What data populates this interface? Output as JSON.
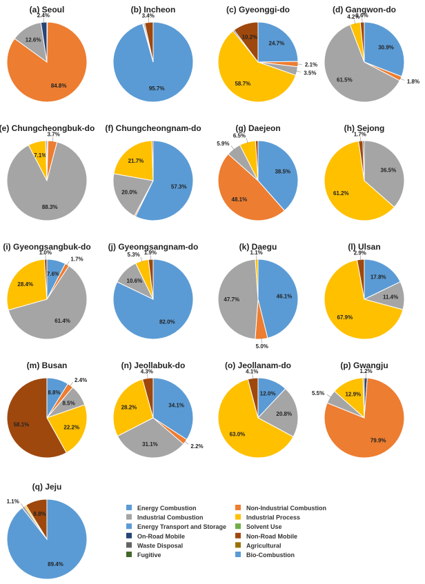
{
  "figure": {
    "legend": [
      {
        "label": "Energy Combustion",
        "color": "#5B9BD5"
      },
      {
        "label": "Non-Industrial Combustion",
        "color": "#ED7D31"
      },
      {
        "label": "Industrial Combustion",
        "color": "#A5A5A5"
      },
      {
        "label": "Industrial Process",
        "color": "#FFC000"
      },
      {
        "label": "Energy Transport and Storage",
        "color": "#5B9BD5"
      },
      {
        "label": "Solvent Use",
        "color": "#70AD47"
      },
      {
        "label": "On-Road Mobile",
        "color": "#264478"
      },
      {
        "label": "Non-Road Mobile",
        "color": "#9E480E"
      },
      {
        "label": "Waste Disposal",
        "color": "#636363"
      },
      {
        "label": "Agricultural",
        "color": "#997300"
      },
      {
        "label": "Fugitive",
        "color": "#43682B"
      },
      {
        "label": "Bio-Combustion",
        "color": "#5B9BD5"
      }
    ]
  },
  "chart_data": [
    {
      "type": "pie",
      "title": "(a) Seoul",
      "slices": [
        {
          "category": "Energy Combustion",
          "value": 0.2,
          "label": ""
        },
        {
          "category": "Non-Industrial Combustion",
          "value": 84.8,
          "label": "84.8%"
        },
        {
          "category": "Industrial Combustion",
          "value": 12.6,
          "label": "12.6%"
        },
        {
          "category": "On-Road Mobile",
          "value": 2.4,
          "label": "2.4%"
        }
      ]
    },
    {
      "type": "pie",
      "title": "(b) Incheon",
      "slices": [
        {
          "category": "Energy Combustion",
          "value": 95.7,
          "label": "95.7%"
        },
        {
          "category": "Non-Industrial Combustion",
          "value": 0.3,
          "label": ""
        },
        {
          "category": "Industrial Combustion",
          "value": 0.6,
          "label": ""
        },
        {
          "category": "Non-Road Mobile",
          "value": 3.4,
          "label": "3.4%"
        }
      ]
    },
    {
      "type": "pie",
      "title": "(c) Gyeonggi-do",
      "slices": [
        {
          "category": "Energy Combustion",
          "value": 24.7,
          "label": "24.7%"
        },
        {
          "category": "Non-Industrial Combustion",
          "value": 2.1,
          "label": "2.1%"
        },
        {
          "category": "Industrial Combustion",
          "value": 3.5,
          "label": "3.5%"
        },
        {
          "category": "Industrial Process",
          "value": 58.7,
          "label": "58.7%"
        },
        {
          "category": "On-Road Mobile",
          "value": 0.5,
          "label": ""
        },
        {
          "category": "Non-Road Mobile",
          "value": 10.2,
          "label": "10.2%"
        }
      ]
    },
    {
      "type": "pie",
      "title": "(d) Gangwon-do",
      "slices": [
        {
          "category": "Energy Combustion",
          "value": 30.9,
          "label": "30.9%"
        },
        {
          "category": "Non-Industrial Combustion",
          "value": 1.8,
          "label": "1.8%"
        },
        {
          "category": "Industrial Combustion",
          "value": 61.5,
          "label": "61.5%"
        },
        {
          "category": "Industrial Process",
          "value": 4.2,
          "label": "4.2%"
        },
        {
          "category": "Non-Road Mobile",
          "value": 1.6,
          "label": "1.6%"
        }
      ]
    },
    {
      "type": "pie",
      "title": "(e) Chungcheongbuk-do",
      "slices": [
        {
          "category": "Energy Combustion",
          "value": 0.4,
          "label": ""
        },
        {
          "category": "Non-Industrial Combustion",
          "value": 3.7,
          "label": "3.7%"
        },
        {
          "category": "Industrial Combustion",
          "value": 88.3,
          "label": "88.3%"
        },
        {
          "category": "Industrial Process",
          "value": 7.1,
          "label": "7.1%"
        },
        {
          "category": "Waste Disposal",
          "value": 0.5,
          "label": ""
        }
      ]
    },
    {
      "type": "pie",
      "title": "(f) Chungcheongnam-do",
      "slices": [
        {
          "category": "Energy Combustion",
          "value": 57.3,
          "label": "57.3%"
        },
        {
          "category": "Non-Industrial Combustion",
          "value": 0.5,
          "label": ""
        },
        {
          "category": "Industrial Combustion",
          "value": 20.0,
          "label": "20.0%"
        },
        {
          "category": "Industrial Process",
          "value": 21.7,
          "label": "21.7%"
        },
        {
          "category": "Non-Road Mobile",
          "value": 0.5,
          "label": ""
        }
      ]
    },
    {
      "type": "pie",
      "title": "(g) Daejeon",
      "slices": [
        {
          "category": "Energy Combustion",
          "value": 38.5,
          "label": "38.5%"
        },
        {
          "category": "Non-Industrial Combustion",
          "value": 48.1,
          "label": "48.1%"
        },
        {
          "category": "Industrial Combustion",
          "value": 5.9,
          "label": "5.9%"
        },
        {
          "category": "Industrial Process",
          "value": 6.5,
          "label": "6.5%"
        },
        {
          "category": "Non-Road Mobile",
          "value": 1.0,
          "label": ""
        }
      ]
    },
    {
      "type": "pie",
      "title": "(h) Sejong",
      "slices": [
        {
          "category": "Industrial Combustion",
          "value": 36.5,
          "label": "36.5%"
        },
        {
          "category": "Industrial Process",
          "value": 61.2,
          "label": "61.2%"
        },
        {
          "category": "Non-Road Mobile",
          "value": 1.7,
          "label": "1.7%"
        },
        {
          "category": "Waste Disposal",
          "value": 0.6,
          "label": ""
        }
      ]
    },
    {
      "type": "pie",
      "title": "(i) Gyeongsangbuk-do",
      "slices": [
        {
          "category": "Energy Combustion",
          "value": 7.6,
          "label": "7.6%"
        },
        {
          "category": "Non-Industrial Combustion",
          "value": 1.7,
          "label": "1.7%"
        },
        {
          "category": "Industrial Combustion",
          "value": 61.4,
          "label": "61.4%"
        },
        {
          "category": "Industrial Process",
          "value": 28.4,
          "label": "28.4%"
        },
        {
          "category": "Non-Road Mobile",
          "value": 1.0,
          "label": "1.0%"
        }
      ]
    },
    {
      "type": "pie",
      "title": "(j) Gyeongsangnam-do",
      "slices": [
        {
          "category": "Energy Combustion",
          "value": 82.0,
          "label": "82.0%"
        },
        {
          "category": "Industrial Combustion",
          "value": 10.6,
          "label": "10.6%"
        },
        {
          "category": "Industrial Process",
          "value": 5.3,
          "label": "5.3%"
        },
        {
          "category": "Non-Road Mobile",
          "value": 1.9,
          "label": "1.9%"
        }
      ]
    },
    {
      "type": "pie",
      "title": "(k) Daegu",
      "slices": [
        {
          "category": "Energy Combustion",
          "value": 46.1,
          "label": "46.1%"
        },
        {
          "category": "Non-Industrial Combustion",
          "value": 5.0,
          "label": "5.0%"
        },
        {
          "category": "Industrial Combustion",
          "value": 47.7,
          "label": "47.7%"
        },
        {
          "category": "Industrial Process",
          "value": 1.1,
          "label": "1.1%"
        }
      ]
    },
    {
      "type": "pie",
      "title": "(l) Ulsan",
      "slices": [
        {
          "category": "Energy Combustion",
          "value": 17.8,
          "label": "17.8%"
        },
        {
          "category": "Industrial Combustion",
          "value": 11.4,
          "label": "11.4%"
        },
        {
          "category": "Industrial Process",
          "value": 67.9,
          "label": "67.9%"
        },
        {
          "category": "Non-Road Mobile",
          "value": 2.9,
          "label": "2.9%"
        }
      ]
    },
    {
      "type": "pie",
      "title": "(m) Busan",
      "slices": [
        {
          "category": "Energy Combustion",
          "value": 8.8,
          "label": "8.8%"
        },
        {
          "category": "Non-Industrial Combustion",
          "value": 2.4,
          "label": "2.4%"
        },
        {
          "category": "Industrial Combustion",
          "value": 8.5,
          "label": "8.5%"
        },
        {
          "category": "Industrial Process",
          "value": 22.2,
          "label": "22.2%"
        },
        {
          "category": "Non-Road Mobile",
          "value": 58.1,
          "label": "58.1%"
        }
      ]
    },
    {
      "type": "pie",
      "title": "(n) Jeollabuk-do",
      "slices": [
        {
          "category": "Energy Combustion",
          "value": 34.1,
          "label": "34.1%"
        },
        {
          "category": "Non-Industrial Combustion",
          "value": 2.2,
          "label": "2.2%"
        },
        {
          "category": "Industrial Combustion",
          "value": 31.1,
          "label": "31.1%"
        },
        {
          "category": "Industrial Process",
          "value": 28.2,
          "label": "28.2%"
        },
        {
          "category": "Non-Road Mobile",
          "value": 4.3,
          "label": "4.3%"
        }
      ]
    },
    {
      "type": "pie",
      "title": "(o) Jeollanam-do",
      "slices": [
        {
          "category": "Energy Combustion",
          "value": 12.0,
          "label": "12.0%"
        },
        {
          "category": "Industrial Combustion",
          "value": 20.8,
          "label": "20.8%"
        },
        {
          "category": "Industrial Process",
          "value": 63.0,
          "label": "63.0%"
        },
        {
          "category": "Non-Road Mobile",
          "value": 4.1,
          "label": "4.1%"
        }
      ]
    },
    {
      "type": "pie",
      "title": "(p) Gwangju",
      "slices": [
        {
          "category": "On-Road Mobile",
          "value": 1.2,
          "label": "1.2%"
        },
        {
          "category": "Non-Industrial Combustion",
          "value": 79.9,
          "label": "79.9%"
        },
        {
          "category": "Industrial Combustion",
          "value": 5.5,
          "label": "5.5%"
        },
        {
          "category": "Industrial Process",
          "value": 12.9,
          "label": "12.9%"
        },
        {
          "category": "Agricultural",
          "value": 0.5,
          "label": ""
        }
      ]
    },
    {
      "type": "pie",
      "title": "(q) Jeju",
      "slices": [
        {
          "category": "Energy Combustion",
          "value": 89.4,
          "label": "89.4%"
        },
        {
          "category": "Industrial Combustion",
          "value": 1.1,
          "label": "1.1%"
        },
        {
          "category": "Industrial Process",
          "value": 0.7,
          "label": ""
        },
        {
          "category": "Non-Road Mobile",
          "value": 8.8,
          "label": "8.8%"
        }
      ]
    }
  ]
}
